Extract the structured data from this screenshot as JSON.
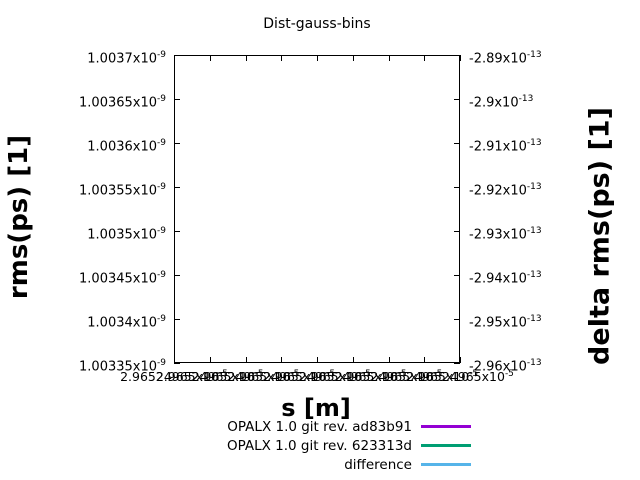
{
  "title": "Dist-gauss-bins",
  "axes": {
    "x": {
      "label": "s [m]",
      "tick_labels": [
        "2.96524965x10^-5",
        "2.96524965x10^-5",
        "2.96524965x10^-5",
        "2.96524965x10^-5",
        "2.96524965x10^-5",
        "2.96524965x10^-5",
        "2.96524965x10^-5",
        "2.96524965x10^-5",
        "2.96524965x10^-5"
      ]
    },
    "y_left": {
      "label": "rms(ps) [1]",
      "tick_labels": [
        "1.0037x10^-9",
        "1.00365x10^-9",
        "1.0036x10^-9",
        "1.00355x10^-9",
        "1.0035x10^-9",
        "1.00345x10^-9",
        "1.0034x10^-9",
        "1.00335x10^-9"
      ]
    },
    "y_right": {
      "label": "delta rms(ps) [1]",
      "tick_labels": [
        "-2.89x10^-13",
        "-2.9x10^-13",
        "-2.91x10^-13",
        "-2.92x10^-13",
        "-2.93x10^-13",
        "-2.94x10^-13",
        "-2.95x10^-13",
        "-2.96x10^-13"
      ]
    }
  },
  "legend": {
    "entries": [
      {
        "label": "OPALX 1.0 git rev. ad83b91",
        "color": "#9400d3"
      },
      {
        "label": "OPALX 1.0 git rev. 623313d",
        "color": "#009e73"
      },
      {
        "label": "difference",
        "color": "#56b4e9"
      }
    ]
  },
  "colors": {
    "series1_purple": "#9400d3",
    "series2_green": "#009e73",
    "series3_blue": "#56b4e9",
    "foreground": "#000000",
    "background": "#ffffff"
  },
  "chart_data": {
    "type": "line",
    "title": "Dist-gauss-bins",
    "xlabel": "s [m]",
    "ylabel_left": "rms(ps) [1]",
    "ylabel_right": "delta rms(ps) [1]",
    "x_ticks": [
      2.96524965e-05,
      2.96524965e-05,
      2.96524965e-05,
      2.96524965e-05,
      2.96524965e-05,
      2.96524965e-05,
      2.96524965e-05,
      2.96524965e-05,
      2.96524965e-05
    ],
    "y_left_ticks": [
      1.0037e-09,
      1.00365e-09,
      1.0036e-09,
      1.00355e-09,
      1.0035e-09,
      1.00345e-09,
      1.0034e-09,
      1.00335e-09
    ],
    "y_right_ticks": [
      -2.89e-13,
      -2.9e-13,
      -2.91e-13,
      -2.92e-13,
      -2.93e-13,
      -2.94e-13,
      -2.95e-13,
      -2.96e-13
    ],
    "y_left_range": [
      1.00335e-09,
      1.0037e-09
    ],
    "y_right_range": [
      -2.96e-13,
      -2.89e-13
    ],
    "grid": false,
    "legend_position": "below-plot-right",
    "plot_area_empty": true,
    "series": [
      {
        "name": "OPALX 1.0 git rev. ad83b91",
        "axis": "left",
        "color": "#9400d3",
        "values": []
      },
      {
        "name": "OPALX 1.0 git rev. 623313d",
        "axis": "left",
        "color": "#009e73",
        "values": []
      },
      {
        "name": "difference",
        "axis": "right",
        "color": "#56b4e9",
        "values": []
      }
    ]
  }
}
